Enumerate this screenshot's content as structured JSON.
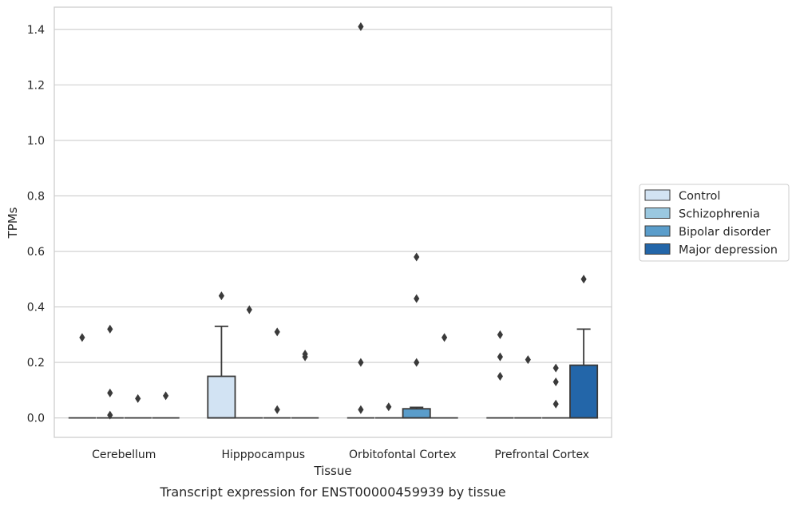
{
  "chart_data": {
    "type": "box",
    "caption": "Transcript expression for ENST00000459939 by tissue",
    "xlabel": "Tissue",
    "ylabel": "TPMs",
    "ylim": [
      -0.07,
      1.48
    ],
    "yticks": [
      0.0,
      0.2,
      0.4,
      0.6,
      0.8,
      1.0,
      1.2,
      1.4
    ],
    "ytick_labels": [
      "0.0",
      "0.2",
      "0.4",
      "0.6",
      "0.8",
      "1.0",
      "1.2",
      "1.4"
    ],
    "grid": "horizontal",
    "legend_position": "right",
    "categories": [
      "Cerebellum",
      "Hipppocampus",
      "Orbitofontal Cortex",
      "Prefrontal Cortex"
    ],
    "series": [
      {
        "name": "Control",
        "color": "#d2e3f3",
        "boxes": [
          {
            "q1": 0,
            "median": 0,
            "q3": 0,
            "whisker_low": 0,
            "whisker_high": 0,
            "outliers": [
              0.29
            ]
          },
          {
            "q1": 0,
            "median": 0,
            "q3": 0.15,
            "whisker_low": 0,
            "whisker_high": 0.33,
            "outliers": [
              0.44
            ]
          },
          {
            "q1": 0,
            "median": 0,
            "q3": 0,
            "whisker_low": 0,
            "whisker_high": 0,
            "outliers": [
              1.41,
              0.2,
              0.03
            ]
          },
          {
            "q1": 0,
            "median": 0,
            "q3": 0,
            "whisker_low": 0,
            "whisker_high": 0,
            "outliers": [
              0.3,
              0.22,
              0.15
            ]
          }
        ]
      },
      {
        "name": "Schizophrenia",
        "color": "#9ac8e0",
        "boxes": [
          {
            "q1": 0,
            "median": 0,
            "q3": 0,
            "whisker_low": 0,
            "whisker_high": 0,
            "outliers": [
              0.32,
              0.09,
              0.01
            ]
          },
          {
            "q1": 0,
            "median": 0,
            "q3": 0,
            "whisker_low": 0,
            "whisker_high": 0,
            "outliers": [
              0.39
            ]
          },
          {
            "q1": 0,
            "median": 0,
            "q3": 0,
            "whisker_low": 0,
            "whisker_high": 0,
            "outliers": [
              0.04
            ]
          },
          {
            "q1": 0,
            "median": 0,
            "q3": 0,
            "whisker_low": 0,
            "whisker_high": 0,
            "outliers": [
              0.21
            ]
          }
        ]
      },
      {
        "name": "Bipolar disorder",
        "color": "#5a9dcb",
        "boxes": [
          {
            "q1": 0,
            "median": 0,
            "q3": 0,
            "whisker_low": 0,
            "whisker_high": 0,
            "outliers": [
              0.07
            ]
          },
          {
            "q1": 0,
            "median": 0,
            "q3": 0,
            "whisker_low": 0,
            "whisker_high": 0,
            "outliers": [
              0.31,
              0.03
            ]
          },
          {
            "q1": 0,
            "median": 0,
            "q3": 0.033,
            "whisker_low": 0,
            "whisker_high": 0.038,
            "outliers": [
              0.58,
              0.43,
              0.2
            ]
          },
          {
            "q1": 0,
            "median": 0,
            "q3": 0,
            "whisker_low": 0,
            "whisker_high": 0,
            "outliers": [
              0.18,
              0.13,
              0.05
            ]
          }
        ]
      },
      {
        "name": "Major depression",
        "color": "#2366a9",
        "boxes": [
          {
            "q1": 0,
            "median": 0,
            "q3": 0,
            "whisker_low": 0,
            "whisker_high": 0,
            "outliers": [
              0.08
            ]
          },
          {
            "q1": 0,
            "median": 0,
            "q3": 0,
            "whisker_low": 0,
            "whisker_high": 0,
            "outliers": [
              0.23,
              0.22
            ]
          },
          {
            "q1": 0,
            "median": 0,
            "q3": 0,
            "whisker_low": 0,
            "whisker_high": 0,
            "outliers": [
              0.29
            ]
          },
          {
            "q1": 0,
            "median": 0,
            "q3": 0.19,
            "whisker_low": 0,
            "whisker_high": 0.32,
            "outliers": [
              0.5
            ]
          }
        ]
      }
    ]
  }
}
